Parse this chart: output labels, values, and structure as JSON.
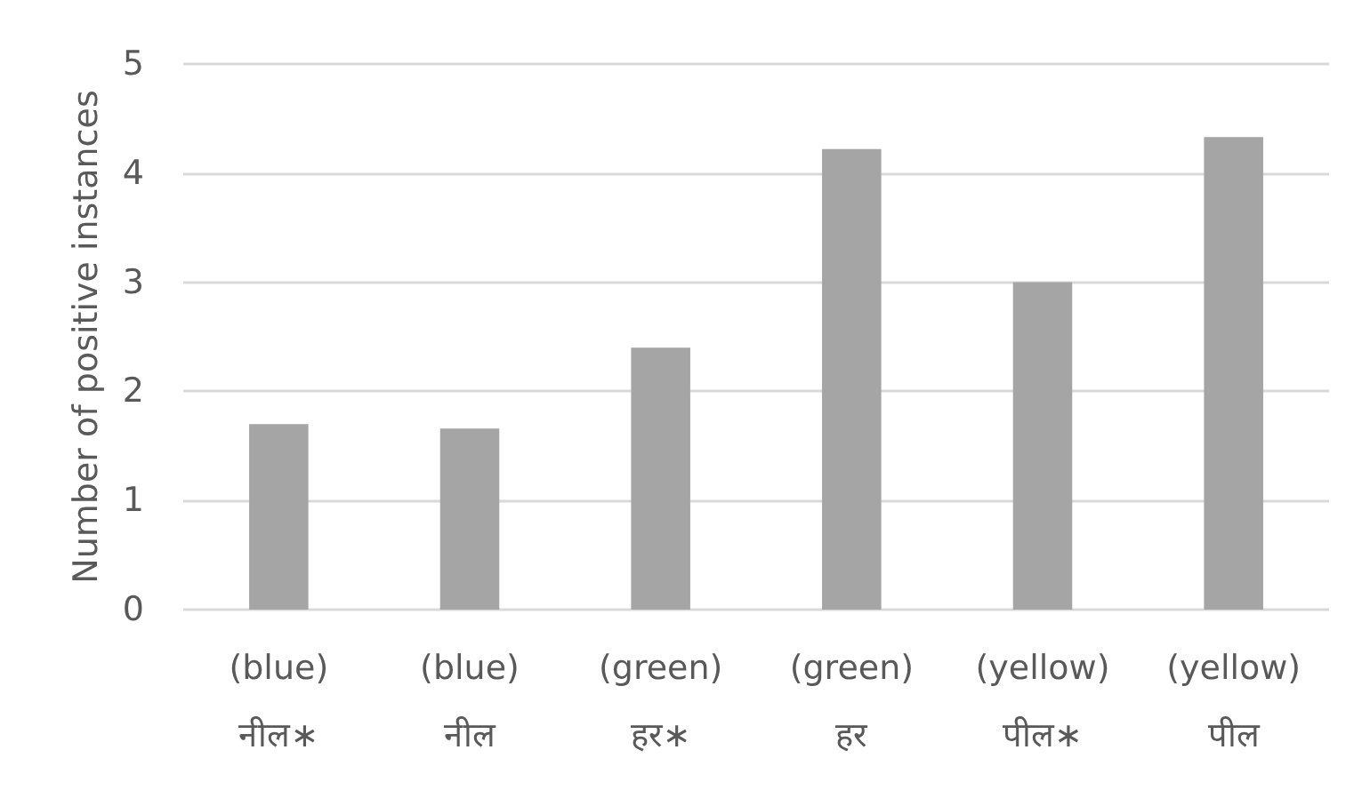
{
  "chart_data": {
    "type": "bar",
    "ylabel": "Number of positive instances",
    "categories": [
      "(blue)\nनील∗",
      "(blue)\nनील",
      "(green)\nहर∗",
      "(green)\nहर",
      "(yellow)\nपील∗",
      "(yellow)\nपील"
    ],
    "values": [
      1.7,
      1.66,
      2.4,
      4.22,
      3.0,
      4.33
    ],
    "color": "#a5a5a5",
    "ylim": [
      0,
      5
    ],
    "yticks": [
      0,
      1,
      2,
      3,
      4,
      5
    ],
    "grid": "y"
  }
}
